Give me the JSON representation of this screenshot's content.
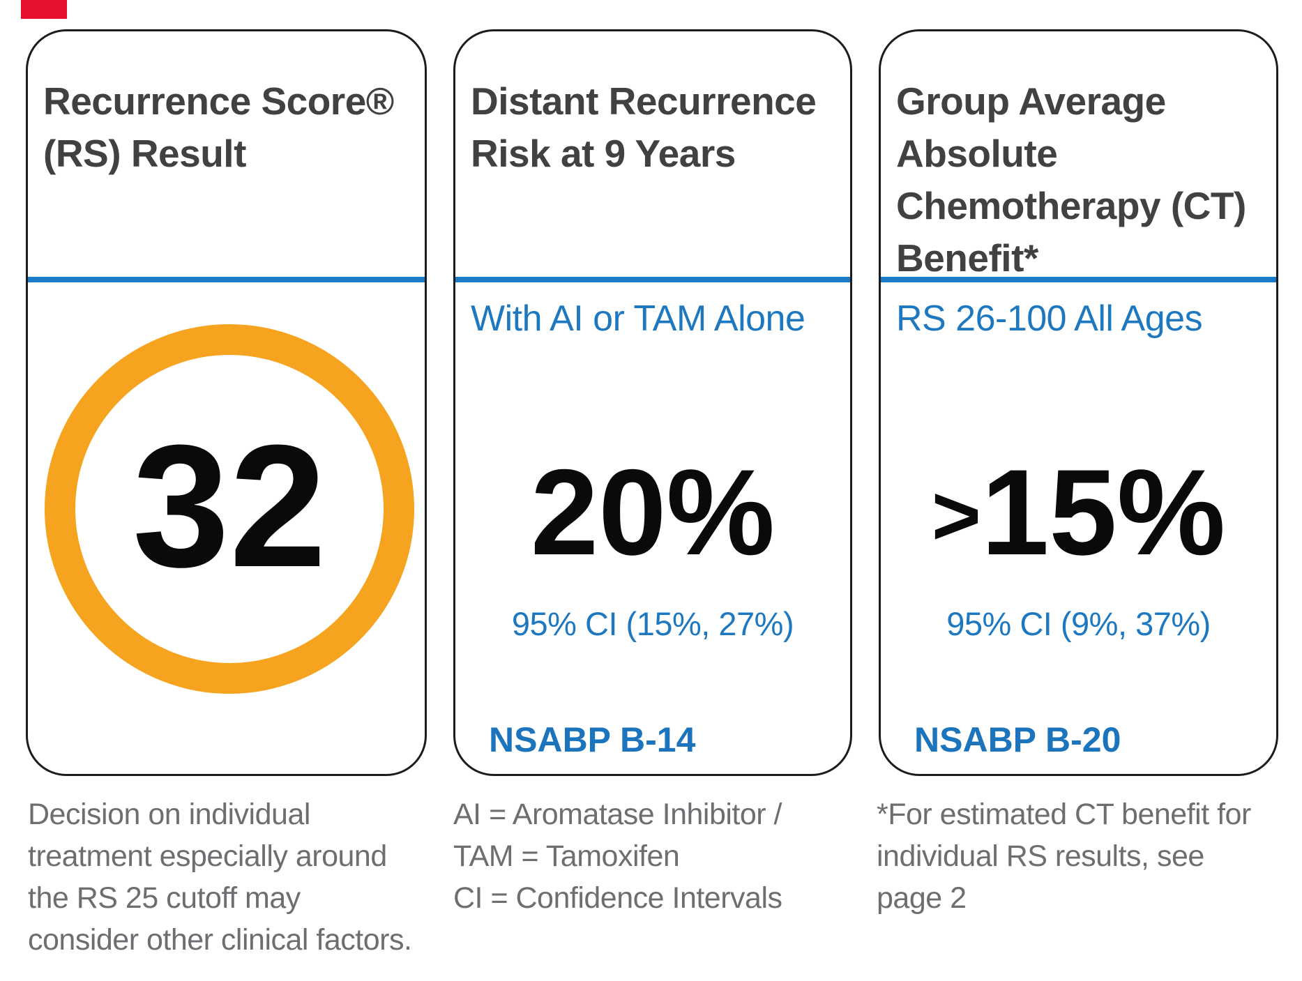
{
  "brand_mark": {
    "color": "#e8112d"
  },
  "colors": {
    "card_border": "#1c1c1c",
    "divider_blue": "#1b7ac9",
    "subtitle_blue": "#1e78c0",
    "study_blue": "#1b74bc",
    "heading_gray": "#414042",
    "footnote_gray": "#6d6e71",
    "score_ring_orange": "#f6a41f",
    "value_black": "#0a0a0a"
  },
  "cards": [
    {
      "heading_lines": [
        "Recurrence Score®",
        "(RS) Result"
      ],
      "score": "32",
      "footnote_lines": [
        "Decision on individual",
        "treatment especially around",
        "the RS 25 cutoff may",
        "consider other clinical factors."
      ]
    },
    {
      "heading_lines": [
        "Distant Recurrence",
        "Risk at 9 Years"
      ],
      "subtitle": "With AI or TAM Alone",
      "value_prefix": "",
      "value": "20%",
      "ci": "95% CI (15%, 27%)",
      "study": "NSABP B-14",
      "footnote_lines": [
        "AI = Aromatase Inhibitor /",
        "TAM = Tamoxifen",
        "CI = Confidence Intervals"
      ]
    },
    {
      "heading_lines": [
        "Group Average",
        "Absolute",
        "Chemotherapy (CT)",
        "Benefit*"
      ],
      "subtitle": "RS 26-100 All Ages",
      "value_prefix": ">",
      "value": "15%",
      "ci": "95% CI (9%, 37%)",
      "study": "NSABP B-20",
      "footnote_lines": [
        "*For estimated CT benefit for",
        "individual RS results, see",
        "page 2"
      ]
    }
  ]
}
